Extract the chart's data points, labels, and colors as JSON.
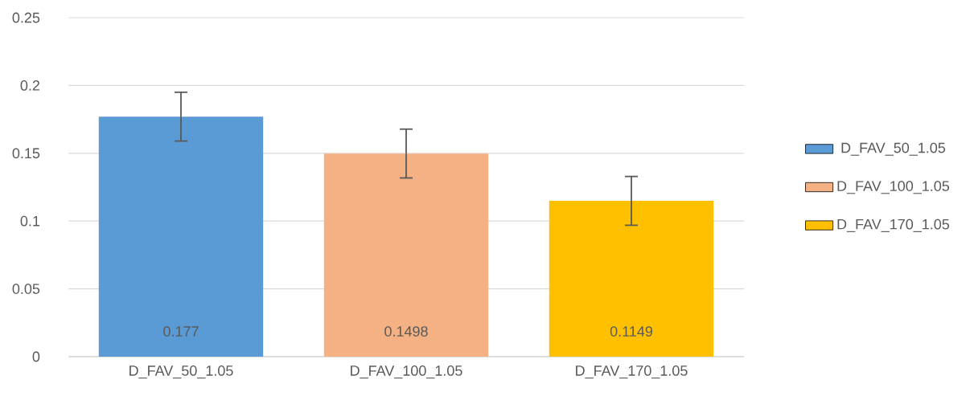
{
  "chart_data": {
    "type": "bar",
    "categories": [
      "D_FAV_50_1.05",
      "D_FAV_100_1.05",
      "D_FAV_170_1.05"
    ],
    "series": [
      {
        "name": "D_FAV_50_1.05",
        "color": "#5b9bd5",
        "values": [
          0.177,
          null,
          null
        ],
        "errors": [
          0.018,
          null,
          null
        ]
      },
      {
        "name": "D_FAV_100_1.05",
        "color": "#f4b183",
        "values": [
          null,
          0.1498,
          null
        ],
        "errors": [
          null,
          0.018,
          null
        ]
      },
      {
        "name": "D_FAV_170_1.05",
        "color": "#ffc000",
        "values": [
          null,
          null,
          0.1149
        ],
        "errors": [
          null,
          null,
          0.018
        ]
      }
    ],
    "ylim": [
      0,
      0.25
    ],
    "yticks": [
      0,
      0.05,
      0.1,
      0.15,
      0.2,
      0.25
    ],
    "grid": "y",
    "legend": "right",
    "data_labels": true
  }
}
